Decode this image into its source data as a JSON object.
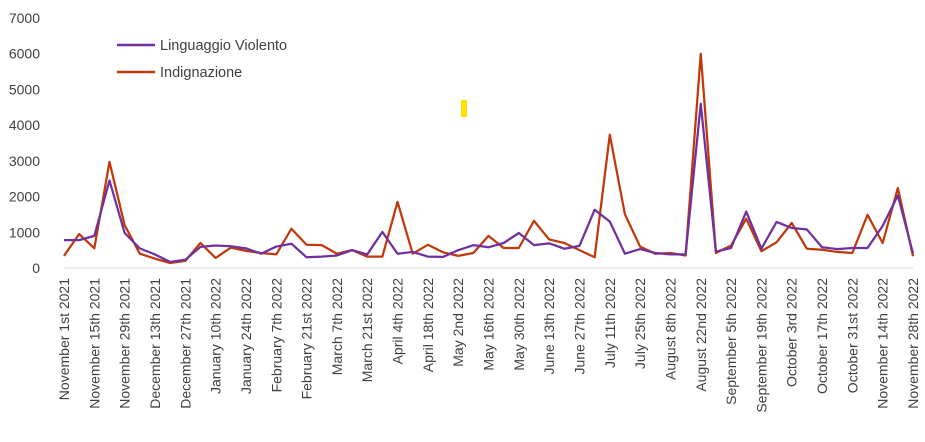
{
  "chart_data": {
    "type": "line",
    "ylim": [
      0,
      7000
    ],
    "yticks": [
      0,
      1000,
      2000,
      3000,
      4000,
      5000,
      6000,
      7000
    ],
    "grid": false,
    "legend_position": "top-left",
    "x_tick_labels": [
      "November 1st 2021",
      "November 15th 2021",
      "November 29th 2021",
      "December 13th 2021",
      "December 27th 2021",
      "January 10th 2022",
      "January 24th 2022",
      "February 7th 2022",
      "February 21st 2022",
      "March 7th 2022",
      "March 21st 2022",
      "April 4th 2022",
      "April 18th 2022",
      "May 2nd 2022",
      "May 16th 2022",
      "May 30th 2022",
      "June 13th 2022",
      "June 27th 2022",
      "July 11th 2022",
      "July 25th 2022",
      "August 8th 2022",
      "August 22nd 2022",
      "September 5th 2022",
      "September 19th 2022",
      "October 3rd 2022",
      "October 17th 2022",
      "October 31st 2022",
      "November 14th 2022",
      "November 28th 2022"
    ],
    "series": [
      {
        "name": "Linguaggio Violento",
        "color": "#7030A0",
        "values": [
          780,
          780,
          900,
          2450,
          980,
          550,
          380,
          170,
          230,
          590,
          630,
          610,
          550,
          400,
          600,
          680,
          300,
          320,
          350,
          500,
          380,
          1010,
          400,
          450,
          320,
          310,
          500,
          640,
          580,
          700,
          980,
          640,
          690,
          540,
          620,
          1630,
          1300,
          400,
          530,
          420,
          380,
          380,
          4600,
          460,
          560,
          1580,
          540,
          1290,
          1120,
          1080,
          580,
          530,
          560,
          560,
          1180,
          2030,
          410
        ]
      },
      {
        "name": "Indignazione",
        "color": "#C0390B",
        "values": [
          340,
          950,
          550,
          2970,
          1200,
          400,
          260,
          140,
          200,
          700,
          280,
          570,
          480,
          420,
          380,
          1100,
          650,
          640,
          400,
          500,
          320,
          320,
          1850,
          400,
          650,
          440,
          340,
          420,
          900,
          560,
          560,
          1320,
          800,
          700,
          500,
          300,
          3730,
          1500,
          600,
          400,
          420,
          350,
          6000,
          420,
          630,
          1380,
          470,
          720,
          1260,
          540,
          510,
          450,
          420,
          1490,
          700,
          2240,
          330
        ]
      }
    ]
  },
  "annotation": {
    "marker_color": "#FFE000"
  }
}
